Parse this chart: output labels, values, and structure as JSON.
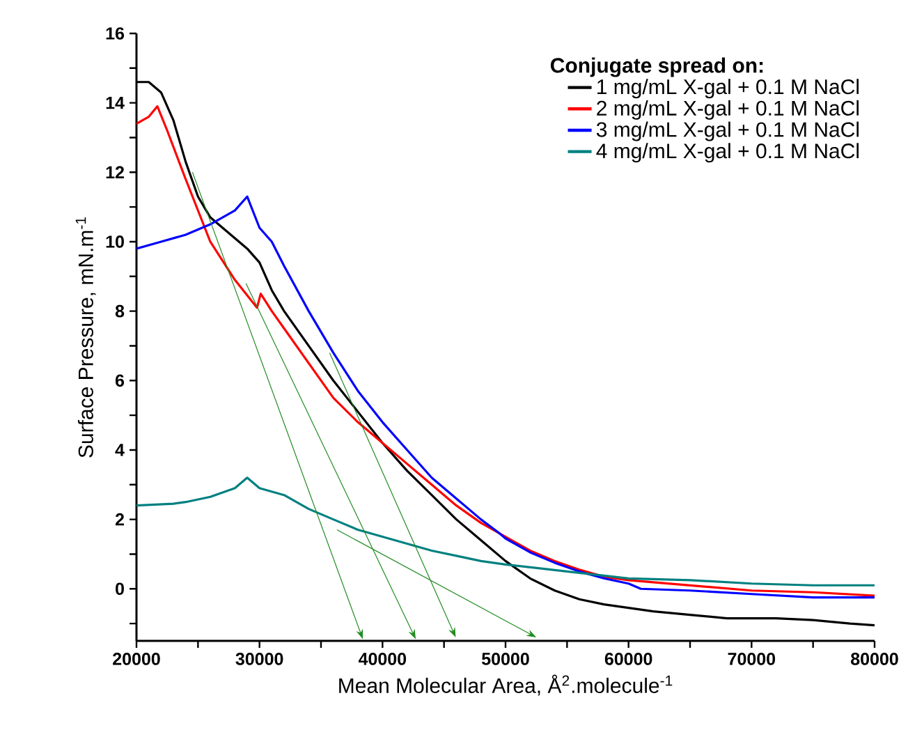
{
  "chart_data": {
    "type": "line",
    "xlabel": "Mean Molecular Area, Å$^{2}$.molecule$^{-1}$",
    "ylabel": "Surface Pressure, mN.m$^{-1}$",
    "legend_title": "Conjugate spread on:",
    "legend": "top right",
    "grid": false,
    "marker": "none",
    "line_style": "solid",
    "xlim": [
      20000,
      80000
    ],
    "ylim": [
      -1.5,
      16
    ],
    "xticks": [
      20000,
      {
        "value": 25000,
        "label": null
      },
      30000,
      {
        "value": 35000,
        "label": null
      },
      40000,
      {
        "value": 45000,
        "label": null
      },
      50000,
      {
        "value": 55000,
        "label": null
      },
      60000,
      {
        "value": 65000,
        "label": null
      },
      70000,
      {
        "value": 75000,
        "label": null
      },
      80000
    ],
    "yticks": [
      {
        "value": -1,
        "label": null
      },
      0,
      {
        "value": 1,
        "label": null
      },
      2,
      {
        "value": 3,
        "label": null
      },
      4,
      {
        "value": 5,
        "label": null
      },
      6,
      {
        "value": 7,
        "label": null
      },
      8,
      {
        "value": 9,
        "label": null
      },
      10,
      {
        "value": 11,
        "label": null
      },
      12,
      {
        "value": 13,
        "label": null
      },
      14,
      {
        "value": 15,
        "label": null
      },
      16
    ],
    "series": [
      {
        "name": "1 mg/mL X-gal + 0.1 M NaCl",
        "color": "#000000",
        "x": [
          20000,
          21000,
          22000,
          23000,
          24000,
          25000,
          26000,
          27000,
          28000,
          29000,
          30000,
          31000,
          32000,
          34000,
          36000,
          38000,
          40000,
          42000,
          44000,
          46000,
          48000,
          50000,
          52000,
          54000,
          56000,
          58000,
          60000,
          62000,
          65000,
          68000,
          72000,
          75000,
          78000,
          80000
        ],
        "values": [
          14.6,
          14.6,
          14.3,
          13.5,
          12.3,
          11.3,
          10.7,
          10.4,
          10.1,
          9.8,
          9.4,
          8.6,
          8.0,
          7.0,
          6.0,
          5.1,
          4.2,
          3.4,
          2.7,
          2.0,
          1.4,
          0.8,
          0.3,
          -0.05,
          -0.3,
          -0.45,
          -0.55,
          -0.65,
          -0.75,
          -0.85,
          -0.85,
          -0.9,
          -1.0,
          -1.05
        ]
      },
      {
        "name": "2 mg/mL X-gal + 0.1 M NaCl",
        "color": "#ff0000",
        "x": [
          20000,
          21000,
          21700,
          22500,
          24000,
          26000,
          28000,
          29800,
          30100,
          31000,
          32000,
          34000,
          36000,
          38000,
          40000,
          42000,
          44000,
          46000,
          48000,
          50000,
          52000,
          54000,
          56000,
          58000,
          60000,
          65000,
          70000,
          75000,
          80000
        ],
        "values": [
          13.4,
          13.6,
          13.9,
          13.2,
          11.8,
          10.0,
          8.9,
          8.1,
          8.5,
          8.0,
          7.5,
          6.5,
          5.5,
          4.8,
          4.2,
          3.6,
          3.0,
          2.4,
          1.9,
          1.5,
          1.1,
          0.8,
          0.55,
          0.35,
          0.25,
          0.1,
          -0.05,
          -0.1,
          -0.2
        ]
      },
      {
        "name": "3 mg/mL X-gal + 0.1 M NaCl",
        "color": "#0000ff",
        "x": [
          20000,
          22000,
          24000,
          26000,
          28000,
          29000,
          30000,
          31000,
          32000,
          34000,
          36000,
          38000,
          40000,
          42000,
          44000,
          46000,
          47000,
          48000,
          49500,
          50000,
          52000,
          54000,
          56000,
          58000,
          60000,
          61000,
          65000,
          70000,
          75000,
          80000
        ],
        "values": [
          9.8,
          10.0,
          10.2,
          10.5,
          10.9,
          11.3,
          10.4,
          10.0,
          9.3,
          8.0,
          6.8,
          5.7,
          4.8,
          4.0,
          3.2,
          2.6,
          2.3,
          2.0,
          1.6,
          1.45,
          1.05,
          0.75,
          0.5,
          0.3,
          0.15,
          0.0,
          -0.05,
          -0.15,
          -0.25,
          -0.25
        ]
      },
      {
        "name": "4 mg/mL X-gal + 0.1 M NaCl",
        "color": "#008080",
        "x": [
          20000,
          23000,
          24000,
          26000,
          28000,
          29000,
          30000,
          32000,
          34000,
          36000,
          38000,
          40000,
          42000,
          44000,
          46000,
          48000,
          50000,
          55000,
          60000,
          65000,
          70000,
          75000,
          80000
        ],
        "values": [
          2.4,
          2.45,
          2.5,
          2.65,
          2.9,
          3.2,
          2.9,
          2.7,
          2.3,
          2.0,
          1.7,
          1.5,
          1.3,
          1.1,
          0.95,
          0.8,
          0.7,
          0.5,
          0.3,
          0.25,
          0.15,
          0.1,
          0.1
        ]
      }
    ]
  }
}
